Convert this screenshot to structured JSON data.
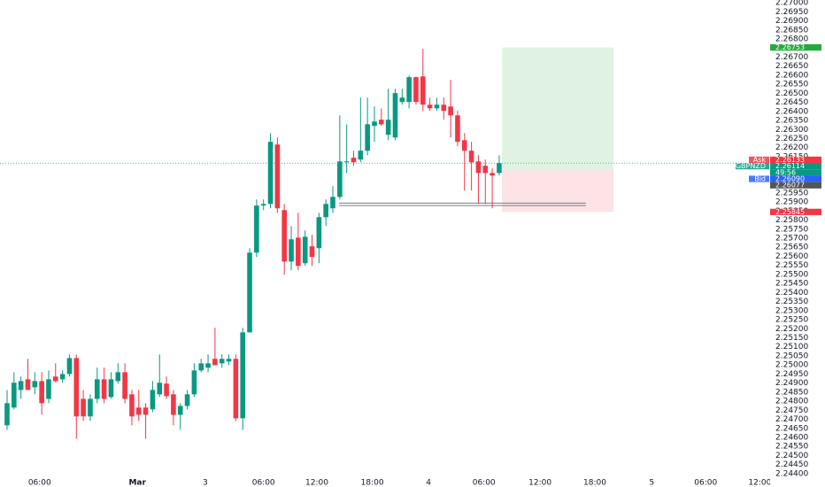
{
  "chart_data": {
    "type": "candlestick",
    "up_color": "#089981",
    "down_color": "#f23645",
    "grid": false,
    "ylim": [
      2.24385,
      2.27015
    ],
    "xlim": [
      -1.02,
      110.09
    ],
    "yticks": [
      {
        "value": 2.27,
        "label": "2.27000"
      },
      {
        "value": 2.2695,
        "label": "2.26950"
      },
      {
        "value": 2.269,
        "label": "2.26900"
      },
      {
        "value": 2.2685,
        "label": "2.26850"
      },
      {
        "value": 2.268,
        "label": "2.26800"
      },
      {
        "value": 2.2675,
        "label": "2.26750"
      },
      {
        "value": 2.267,
        "label": "2.26700"
      },
      {
        "value": 2.2665,
        "label": "2.26650"
      },
      {
        "value": 2.266,
        "label": "2.26600"
      },
      {
        "value": 2.2655,
        "label": "2.26550"
      },
      {
        "value": 2.265,
        "label": "2.26500"
      },
      {
        "value": 2.2645,
        "label": "2.26450"
      },
      {
        "value": 2.264,
        "label": "2.26400"
      },
      {
        "value": 2.2635,
        "label": "2.26350"
      },
      {
        "value": 2.263,
        "label": "2.26300"
      },
      {
        "value": 2.2625,
        "label": "2.26250"
      },
      {
        "value": 2.262,
        "label": "2.26200"
      },
      {
        "value": 2.2615,
        "label": "2.26150"
      },
      {
        "value": 2.261,
        "label": "2.26100"
      },
      {
        "value": 2.2605,
        "label": "2.26050"
      },
      {
        "value": 2.26,
        "label": "2.26000"
      },
      {
        "value": 2.2595,
        "label": "2.25950"
      },
      {
        "value": 2.259,
        "label": "2.25900"
      },
      {
        "value": 2.2585,
        "label": "2.25850"
      },
      {
        "value": 2.258,
        "label": "2.25800"
      },
      {
        "value": 2.2575,
        "label": "2.25750"
      },
      {
        "value": 2.257,
        "label": "2.25700"
      },
      {
        "value": 2.2565,
        "label": "2.25650"
      },
      {
        "value": 2.256,
        "label": "2.25600"
      },
      {
        "value": 2.2555,
        "label": "2.25550"
      },
      {
        "value": 2.255,
        "label": "2.25500"
      },
      {
        "value": 2.2545,
        "label": "2.25450"
      },
      {
        "value": 2.254,
        "label": "2.25400"
      },
      {
        "value": 2.2535,
        "label": "2.25350"
      },
      {
        "value": 2.253,
        "label": "2.25300"
      },
      {
        "value": 2.2525,
        "label": "2.25250"
      },
      {
        "value": 2.252,
        "label": "2.25200"
      },
      {
        "value": 2.2515,
        "label": "2.25150"
      },
      {
        "value": 2.251,
        "label": "2.25100"
      },
      {
        "value": 2.2505,
        "label": "2.25050"
      },
      {
        "value": 2.25,
        "label": "2.25000"
      },
      {
        "value": 2.2495,
        "label": "2.24950"
      },
      {
        "value": 2.249,
        "label": "2.24900"
      },
      {
        "value": 2.2485,
        "label": "2.24850"
      },
      {
        "value": 2.248,
        "label": "2.24800"
      },
      {
        "value": 2.2475,
        "label": "2.24750"
      },
      {
        "value": 2.247,
        "label": "2.24700"
      },
      {
        "value": 2.2465,
        "label": "2.24650"
      },
      {
        "value": 2.246,
        "label": "2.24600"
      },
      {
        "value": 2.2455,
        "label": "2.24550"
      },
      {
        "value": 2.245,
        "label": "2.24500"
      },
      {
        "value": 2.2445,
        "label": "2.24450"
      },
      {
        "value": 2.244,
        "label": "2.24400"
      }
    ],
    "xticks": [
      {
        "value": 4.7,
        "label": "06:00"
      },
      {
        "value": 18.8,
        "label": "Mar",
        "bold": true
      },
      {
        "value": 28.6,
        "label": "3"
      },
      {
        "value": 37.0,
        "label": "06:00"
      },
      {
        "value": 44.7,
        "label": "12:00"
      },
      {
        "value": 52.7,
        "label": "18:00"
      },
      {
        "value": 60.8,
        "label": "4"
      },
      {
        "value": 68.8,
        "label": "06:00"
      },
      {
        "value": 76.9,
        "label": "12:00"
      },
      {
        "value": 84.8,
        "label": "18:00"
      },
      {
        "value": 93.0,
        "label": "5"
      },
      {
        "value": 100.8,
        "label": "06:00"
      },
      {
        "value": 108.6,
        "label": "12:00"
      }
    ],
    "categories": [
      null,
      null,
      null,
      null,
      null,
      null,
      null,
      null,
      null,
      null,
      null,
      null,
      null,
      null,
      null,
      null,
      null,
      null,
      null,
      null,
      null,
      null,
      null,
      null,
      null,
      null,
      null,
      null,
      null,
      null,
      null,
      null,
      null,
      null,
      null,
      null,
      null,
      null,
      null,
      null,
      null,
      null,
      null,
      null,
      null,
      null,
      null,
      null,
      null,
      null,
      null,
      null,
      null,
      null,
      null,
      null,
      null,
      null,
      null,
      null,
      null,
      null,
      null,
      null,
      null,
      null,
      null,
      null,
      null,
      null,
      null,
      null
    ],
    "ohlc": [
      [
        2.24667,
        2.24862,
        2.24642,
        2.24789
      ],
      [
        2.24765,
        2.2496,
        2.24755,
        2.24902
      ],
      [
        2.24862,
        2.24936,
        2.24813,
        2.24911
      ],
      [
        2.24921,
        2.25034,
        2.24862,
        2.24862
      ],
      [
        2.24877,
        2.2496,
        2.24838,
        2.24911
      ],
      [
        2.24911,
        2.2496,
        2.24725,
        2.24789
      ],
      [
        2.24813,
        2.2497,
        2.24789,
        2.24921
      ],
      [
        2.24936,
        2.25009,
        2.24902,
        2.24911
      ],
      [
        2.24921,
        2.2497,
        2.24902,
        2.2495
      ],
      [
        2.2495,
        2.25058,
        2.24936,
        2.25038
      ],
      [
        2.25038,
        2.25058,
        2.24593,
        2.24716
      ],
      [
        2.24813,
        2.24862,
        2.24691,
        2.24716
      ],
      [
        2.24716,
        2.24838,
        2.24691,
        2.24813
      ],
      [
        2.24813,
        2.24985,
        2.24789,
        2.24921
      ],
      [
        2.24921,
        2.24985,
        2.24789,
        2.24813
      ],
      [
        2.24823,
        2.2496,
        2.24813,
        2.24921
      ],
      [
        2.24911,
        2.25009,
        2.24897,
        2.2496
      ],
      [
        2.2496,
        2.25009,
        2.24789,
        2.24813
      ],
      [
        2.24838,
        2.24862,
        2.24667,
        2.24716
      ],
      [
        2.24765,
        2.24862,
        2.24691,
        2.24725
      ],
      [
        2.24765,
        2.24789,
        2.24593,
        2.24725
      ],
      [
        2.24755,
        2.24911,
        2.2474,
        2.24862
      ],
      [
        2.24838,
        2.25058,
        2.24823,
        2.24902
      ],
      [
        2.24897,
        2.24936,
        2.24813,
        2.24828
      ],
      [
        2.24838,
        2.24862,
        2.24667,
        2.24725
      ],
      [
        2.24725,
        2.24789,
        2.24642,
        2.24774
      ],
      [
        2.24774,
        2.24862,
        2.24755,
        2.24838
      ],
      [
        2.24838,
        2.25009,
        2.24823,
        2.2497
      ],
      [
        2.2497,
        2.25034,
        2.2496,
        2.25009
      ],
      [
        2.24985,
        2.25058,
        2.2496,
        2.25009
      ],
      [
        2.25034,
        2.25205,
        2.24999,
        2.24999
      ],
      [
        2.25009,
        2.25058,
        2.24985,
        2.25034
      ],
      [
        2.25019,
        2.25058,
        2.24999,
        2.25034
      ],
      [
        2.25034,
        2.25058,
        2.24691,
        2.24706
      ],
      [
        2.24706,
        2.25205,
        2.24642,
        2.2518
      ],
      [
        2.2518,
        2.25645,
        2.2518,
        2.2562
      ],
      [
        2.2562,
        2.25914,
        2.25596,
        2.2588
      ],
      [
        2.2588,
        2.25914,
        2.25855,
        2.25889
      ],
      [
        2.25889,
        2.2628,
        2.25865,
        2.26232
      ],
      [
        2.26217,
        2.26256,
        2.2584,
        2.25865
      ],
      [
        2.25855,
        2.25889,
        2.25498,
        2.25571
      ],
      [
        2.25571,
        2.25767,
        2.25523,
        2.25694
      ],
      [
        2.25703,
        2.2584,
        2.25523,
        2.25547
      ],
      [
        2.25562,
        2.25743,
        2.25547,
        2.25708
      ],
      [
        2.25655,
        2.25718,
        2.25547,
        2.25596
      ],
      [
        2.25645,
        2.2584,
        2.25562,
        2.25816
      ],
      [
        2.25816,
        2.25914,
        2.25767,
        2.25889
      ],
      [
        2.25865,
        2.25987,
        2.2584,
        2.25928
      ],
      [
        2.25928,
        2.26378,
        2.25914,
        2.26124
      ],
      [
        2.26119,
        2.26329,
        2.2606,
        2.26124
      ],
      [
        2.26144,
        2.26183,
        2.261,
        2.26119
      ],
      [
        2.26134,
        2.26476,
        2.26119,
        2.26183
      ],
      [
        2.26183,
        2.26476,
        2.26158,
        2.26329
      ],
      [
        2.2632,
        2.26427,
        2.26232,
        2.26344
      ],
      [
        2.26354,
        2.26417,
        2.2632,
        2.26329
      ],
      [
        2.26271,
        2.26525,
        2.26241,
        2.26354
      ],
      [
        2.26256,
        2.26525,
        2.26241,
        2.26501
      ],
      [
        2.26452,
        2.26525,
        2.26437,
        2.26476
      ],
      [
        2.26452,
        2.26598,
        2.26417,
        2.26589
      ],
      [
        2.26589,
        2.26593,
        2.26437,
        2.26452
      ],
      [
        2.26593,
        2.26745,
        2.26403,
        2.26437
      ],
      [
        2.26437,
        2.26476,
        2.26403,
        2.26417
      ],
      [
        2.26417,
        2.26476,
        2.26403,
        2.26437
      ],
      [
        2.26437,
        2.26476,
        2.26354,
        2.26403
      ],
      [
        2.26427,
        2.26574,
        2.26256,
        2.26378
      ],
      [
        2.26378,
        2.26403,
        2.26207,
        2.26232
      ],
      [
        2.26241,
        2.2628,
        2.25963,
        2.26183
      ],
      [
        2.26183,
        2.26232,
        2.25963,
        2.26119
      ],
      [
        2.26124,
        2.26158,
        2.25889,
        2.2606
      ],
      [
        2.261,
        2.26134,
        2.25889,
        2.2606
      ],
      [
        2.2606,
        2.26085,
        2.25865,
        2.26046
      ],
      [
        2.2606,
        2.26158,
        2.26046,
        2.26114
      ]
    ],
    "position": {
      "x_start": 71.4,
      "x_end": 87.5,
      "target": {
        "value": 2.26753,
        "label": "2.26753"
      },
      "entry": 2.2608,
      "stop": {
        "value": 2.25845,
        "label": "2.25845"
      },
      "target_color": "#22ab3c",
      "stop_color": "#f23645"
    },
    "levels": [
      {
        "value": 2.25894,
        "x_start": 47.9,
        "x_end": 83.5
      },
      {
        "value": 2.2588,
        "x_start": 47.9,
        "x_end": 83.5
      }
    ],
    "price_labels": [
      {
        "name": "Ask",
        "value": 2.26133,
        "label": "2.26133",
        "color": "#f23645"
      },
      {
        "name": "GBPNZD",
        "value": 2.26114,
        "label": "2.26114",
        "color": "#089981",
        "countdown": "49:56"
      },
      {
        "name": "Bid",
        "value": 2.2609,
        "label": "2.26090",
        "color": "#2962ff"
      },
      {
        "value": 2.26077,
        "label": "2.26077",
        "color": "#555555"
      }
    ]
  }
}
